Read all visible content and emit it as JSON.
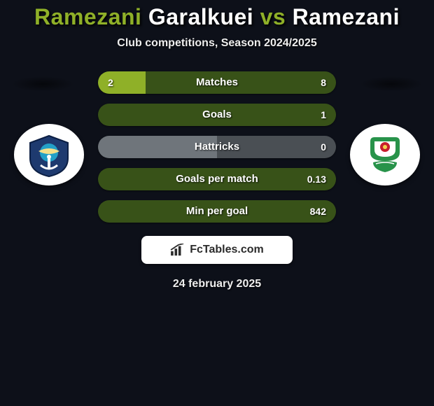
{
  "title_parts": {
    "p1": "Ramezani",
    "p2": "Garalkuei",
    "vs": "vs",
    "p3": "Ramezani"
  },
  "subtitle": "Club competitions, Season 2024/2025",
  "colors": {
    "left_team": "#8fb028",
    "right_team": "#385218",
    "neutral_left": "#6f757b",
    "neutral_right": "#4a4f54",
    "background": "#0d1019",
    "text": "#ffffff",
    "shadow": "#000000"
  },
  "badge_colors": {
    "left_primary": "#1e3a6f",
    "left_accent": "#23a0c7",
    "right_primary": "#28934a",
    "right_accent": "#c71f2d"
  },
  "stats": [
    {
      "label": "Matches",
      "left_val": "2",
      "right_val": "8",
      "left_pct": 20,
      "right_pct": 80,
      "colored": true
    },
    {
      "label": "Goals",
      "left_val": "",
      "right_val": "1",
      "left_pct": 0,
      "right_pct": 100,
      "colored": true
    },
    {
      "label": "Hattricks",
      "left_val": "",
      "right_val": "0",
      "left_pct": 50,
      "right_pct": 50,
      "colored": false
    },
    {
      "label": "Goals per match",
      "left_val": "",
      "right_val": "0.13",
      "left_pct": 0,
      "right_pct": 100,
      "colored": true
    },
    {
      "label": "Min per goal",
      "left_val": "",
      "right_val": "842",
      "left_pct": 0,
      "right_pct": 100,
      "colored": true
    }
  ],
  "footer_brand": "FcTables.com",
  "date": "24 february 2025"
}
